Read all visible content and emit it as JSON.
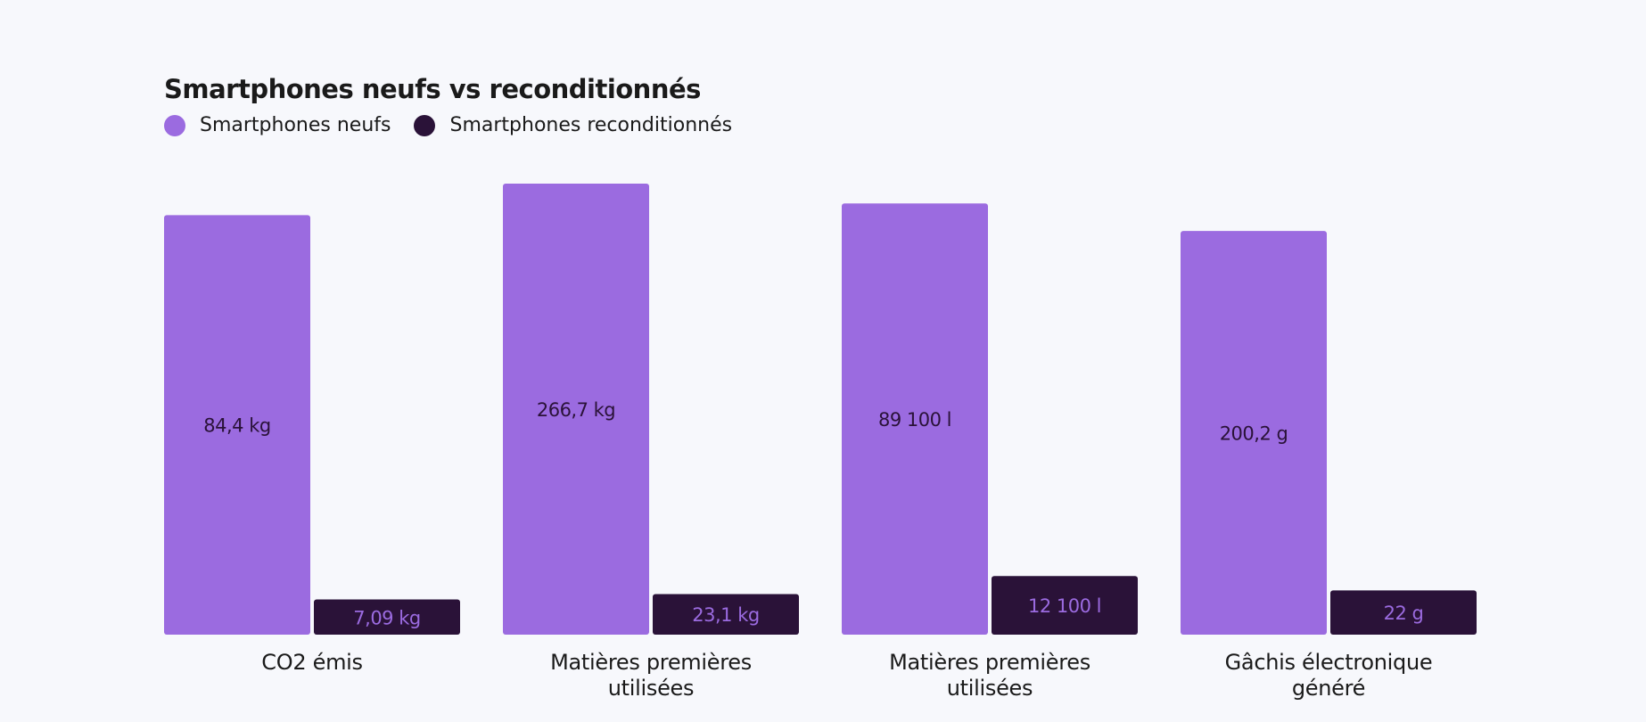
{
  "chart_data": {
    "type": "bar",
    "title": "Smartphones neufs vs reconditionnés",
    "categories": [
      [
        "CO2 émis"
      ],
      [
        "Matières premières",
        "utilisées"
      ],
      [
        "Matières premières",
        "utilisées"
      ],
      [
        "Gâchis électronique",
        "généré"
      ]
    ],
    "series": [
      {
        "name": "Smartphones neufs",
        "color": "#9b6be0",
        "label_color": "#2a1238",
        "values": [
          84.4,
          266.7,
          89100,
          200.2
        ],
        "labels": [
          "84,4 kg",
          "266,7 kg",
          "89 100 l",
          "200,2 g"
        ],
        "relative_heights": [
          0.93,
          1.0,
          0.956,
          0.895
        ]
      },
      {
        "name": "Smartphones reconditionnés",
        "color": "#2a1238",
        "label_color": "#9b6be0",
        "values": [
          7.09,
          23.1,
          12100,
          22
        ],
        "labels": [
          "7,09 kg",
          "23,1 kg",
          "12 100 l",
          "22 g"
        ],
        "relative_heights": [
          0.078,
          0.09,
          0.13,
          0.098
        ]
      }
    ],
    "legend_position": "top-left",
    "grid": false
  }
}
